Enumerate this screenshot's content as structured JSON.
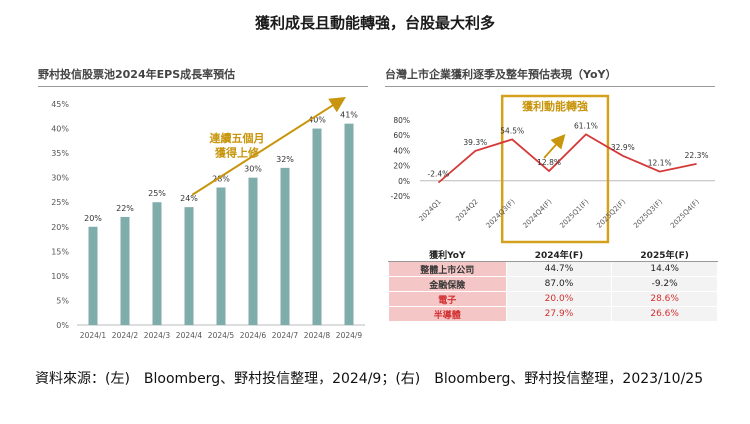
{
  "page": {
    "title": "獲利成長且動能轉強，台股最大利多",
    "source": "資料來源：(左)　Bloomberg、野村投信整理，2024/9；(右)　Bloomberg、野村投信整理，2023/10/25"
  },
  "colors": {
    "bar": "#7fadab",
    "arrow": "#c8950d",
    "highlight_box": "#d4a11e",
    "line": "#d63838",
    "table_label_bg": "#f5c6c6",
    "table_highlight_text": "#d32f2f"
  },
  "chart_data": [
    {
      "type": "bar",
      "title": "野村投信股票池2024年EPS成長率預估",
      "categories": [
        "2024/1",
        "2024/2",
        "2024/3",
        "2024/4",
        "2024/5",
        "2024/6",
        "2024/7",
        "2024/8",
        "2024/9"
      ],
      "values": [
        20,
        22,
        25,
        24,
        28,
        30,
        32,
        40,
        41
      ],
      "data_labels": [
        "20%",
        "22%",
        "25%",
        "24%",
        "28%",
        "30%",
        "32%",
        "40%",
        "41%"
      ],
      "ylim": [
        0,
        45
      ],
      "yticks": [
        0,
        5,
        10,
        15,
        20,
        25,
        30,
        35,
        40,
        45
      ],
      "ytick_labels": [
        "0%",
        "5%",
        "10%",
        "15%",
        "20%",
        "25%",
        "30%",
        "35%",
        "40%",
        "45%"
      ],
      "annotation": {
        "line1": "連續五個月",
        "line2": "獲得上修"
      }
    },
    {
      "type": "line",
      "title": "台灣上市企業獲利逐季及整年預估表現（YoY）",
      "categories": [
        "2024Q1",
        "2024Q2",
        "2024Q3(F)",
        "2024Q4(F)",
        "2025Q1(F)",
        "2025Q2(F)",
        "2025Q3(F)",
        "2025Q4(F)"
      ],
      "values": [
        -2.4,
        39.3,
        54.5,
        12.8,
        61.1,
        32.9,
        12.1,
        22.3
      ],
      "data_labels": [
        "-2.4%",
        "39.3%",
        "54.5%",
        "12.8%",
        "61.1%",
        "32.9%",
        "12.1%",
        "22.3%"
      ],
      "ylim": [
        -20,
        80
      ],
      "yticks": [
        -20,
        0,
        20,
        40,
        60,
        80
      ],
      "ytick_labels": [
        "-20%",
        "0%",
        "20%",
        "40%",
        "60%",
        "80%"
      ],
      "annotation": "獲利動能轉強"
    }
  ],
  "table": {
    "headers": [
      "獲利YoY",
      "2024年(F)",
      "2025年(F)"
    ],
    "rows": [
      {
        "label": "整體上市公司",
        "v2024": "44.7%",
        "v2025": "14.4%"
      },
      {
        "label": "金融保險",
        "v2024": "87.0%",
        "v2025": "-9.2%"
      },
      {
        "label": "電子",
        "v2024": "20.0%",
        "v2025": "28.6%"
      },
      {
        "label": "半導體",
        "v2024": "27.9%",
        "v2025": "26.6%"
      }
    ]
  }
}
